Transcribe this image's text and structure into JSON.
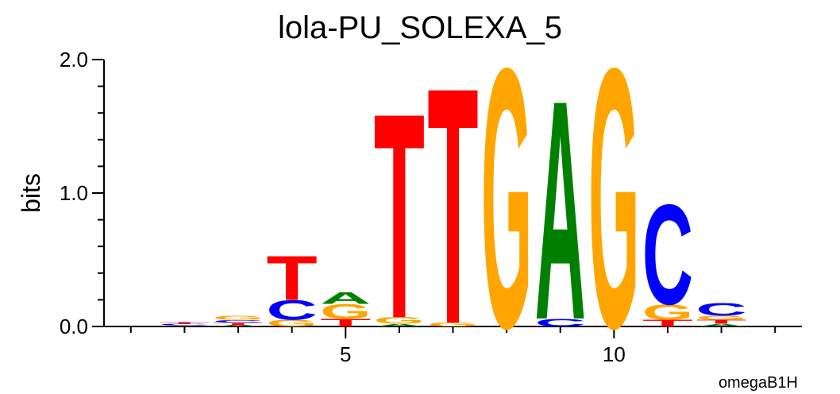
{
  "chart_data": {
    "type": "sequence-logo",
    "title": "lola-PU_SOLEXA_5",
    "y_label": "bits",
    "footnote": "omegaB1H",
    "xlim": [
      0.5,
      13.5
    ],
    "xticks": [
      5,
      10
    ],
    "xminorticks": [
      1,
      2,
      3,
      4,
      6,
      7,
      8,
      9,
      11,
      12,
      13
    ],
    "ylim": [
      0,
      2
    ],
    "yticks": [
      {
        "value": 0,
        "label": "0.0"
      },
      {
        "value": 1,
        "label": "1.0"
      },
      {
        "value": 2,
        "label": "2.0"
      }
    ],
    "yminorticks": [
      0.2,
      0.4,
      0.6,
      0.8,
      1.2,
      1.4,
      1.6,
      1.8
    ],
    "colors": {
      "A": "#008000",
      "C": "#0000ff",
      "G": "#ffa500",
      "T": "#ff0000"
    },
    "columns": [
      {
        "x": 2,
        "letters": [
          "A",
          "G",
          "C",
          "T"
        ],
        "heights": [
          0.005,
          0.005,
          0.01,
          0.01
        ]
      },
      {
        "x": 3,
        "letters": [
          "A",
          "T",
          "C",
          "G"
        ],
        "heights": [
          0.01,
          0.02,
          0.02,
          0.03
        ]
      },
      {
        "x": 4,
        "letters": [
          "G",
          "C",
          "T"
        ],
        "heights": [
          0.05,
          0.15,
          0.34
        ]
      },
      {
        "x": 5,
        "letters": [
          "T",
          "G",
          "A"
        ],
        "heights": [
          0.06,
          0.11,
          0.09
        ]
      },
      {
        "x": 6,
        "letters": [
          "A",
          "G",
          "T"
        ],
        "heights": [
          0.02,
          0.05,
          1.58
        ]
      },
      {
        "x": 7,
        "letters": [
          "G",
          "T"
        ],
        "heights": [
          0.03,
          1.82
        ]
      },
      {
        "x": 8,
        "letters": [
          "G"
        ],
        "heights": [
          2.0
        ]
      },
      {
        "x": 9,
        "letters": [
          "C",
          "A"
        ],
        "heights": [
          0.06,
          1.69
        ]
      },
      {
        "x": 10,
        "letters": [
          "G"
        ],
        "heights": [
          2.0
        ]
      },
      {
        "x": 11,
        "letters": [
          "T",
          "G",
          "C"
        ],
        "heights": [
          0.05,
          0.12,
          0.77
        ]
      },
      {
        "x": 12,
        "letters": [
          "A",
          "T",
          "G",
          "C"
        ],
        "heights": [
          0.02,
          0.03,
          0.03,
          0.1
        ]
      }
    ]
  }
}
